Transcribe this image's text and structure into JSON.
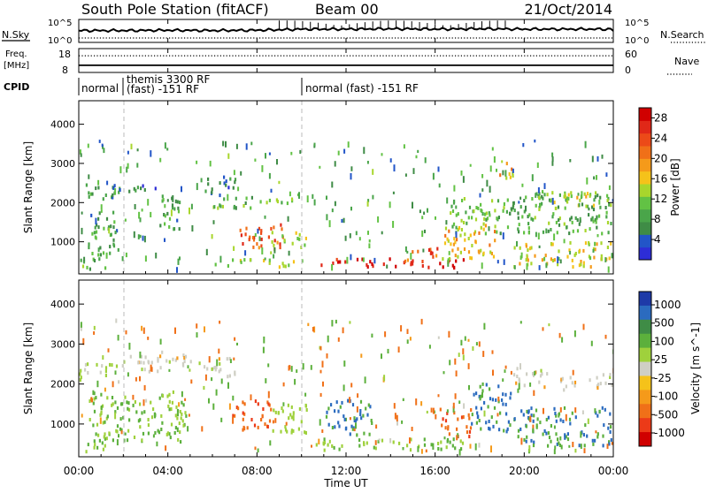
{
  "header": {
    "station": "South Pole Station (fitACF)",
    "beam": "Beam 00",
    "date": "21/Oct/2014"
  },
  "colors": {
    "noise_line": "#000000",
    "grid_dash": "#bbbbbb",
    "power_scale": [
      "#2d2dd6",
      "#2255c8",
      "#3f8c46",
      "#4aa54a",
      "#62c244",
      "#a8d62c",
      "#f5c21a",
      "#f59a1a",
      "#f07018",
      "#ec4a18",
      "#e02818",
      "#d00000"
    ],
    "velocity_scale": [
      "#1e3aa8",
      "#2b6bbf",
      "#3f8c46",
      "#5cb03c",
      "#9fd13c",
      "#cfcfc4",
      "#f5c21a",
      "#f59a1a",
      "#f07018",
      "#ec3a18",
      "#d00000"
    ]
  },
  "chart_data": [
    {
      "type": "line",
      "title": "N.Sky / N.Search",
      "left_label": "N.Sky",
      "right_label": "N.Search",
      "left_ticks": [
        "10^5",
        "10^0"
      ],
      "right_ticks": [
        "10^5",
        "10^0"
      ],
      "x_range": [
        "00:00",
        "24:00"
      ],
      "y_scale": "log",
      "series": [
        {
          "name": "N.Sky",
          "style": "solid",
          "x_hours": [
            0,
            2,
            4,
            6,
            8,
            9.5,
            10,
            12,
            14,
            16,
            18,
            20,
            22,
            24
          ],
          "log10_values": [
            2.6,
            2.6,
            2.7,
            2.6,
            2.7,
            2.9,
            3.0,
            3.0,
            3.1,
            3.0,
            3.1,
            3.0,
            3.0,
            3.0
          ]
        },
        {
          "name": "N.Search",
          "style": "dotted",
          "x_hours": [
            0,
            4,
            8,
            12,
            16,
            20,
            24
          ],
          "log10_values": [
            0.5,
            0.5,
            0.5,
            0.5,
            0.5,
            0.5,
            0.5
          ]
        }
      ]
    },
    {
      "type": "line",
      "title": "Freq / Nave",
      "left_label": "Freq. [MHz]",
      "right_label": "Nave",
      "left_ticks": [
        "18",
        "8"
      ],
      "right_ticks": [
        "60",
        "0"
      ],
      "x_range": [
        "00:00",
        "24:00"
      ],
      "series": [
        {
          "name": "Freq",
          "style": "solid",
          "x_hours": [
            0,
            2,
            24
          ],
          "values": [
            10.8,
            10.8,
            10.8
          ]
        },
        {
          "name": "Nave",
          "style": "dotted",
          "x_hours": [
            0,
            24
          ],
          "values": [
            46,
            46
          ]
        }
      ]
    },
    {
      "type": "table",
      "title": "CPID",
      "label": "CPID",
      "segments": [
        {
          "start_hours": 0,
          "end_hours": 2,
          "text": "normal"
        },
        {
          "start_hours": 2,
          "end_hours": 10,
          "text": "themis 3300 RF",
          "text2": "(fast) -151 RF"
        },
        {
          "start_hours": 10,
          "end_hours": 24,
          "text": "normal (fast) -151 RF"
        }
      ]
    },
    {
      "type": "heatmap",
      "quantity": "power",
      "ylabel": "Slant Range [km]",
      "yticks": [
        1000,
        2000,
        3000,
        4000
      ],
      "ylim": [
        180,
        4600
      ],
      "colorbar_label": "Power [dB]",
      "colorbar_ticks": [
        4,
        8,
        12,
        16,
        20,
        24,
        28
      ],
      "colorbar_range": [
        0,
        30
      ],
      "echo_regions": [
        {
          "h0": 0.0,
          "h1": 1.8,
          "r0": 2050,
          "r1": 2500,
          "level": 7
        },
        {
          "h0": 1.8,
          "h1": 3.5,
          "r0": 2250,
          "r1": 2500,
          "level": 6
        },
        {
          "h0": 0.4,
          "h1": 1.8,
          "r0": 550,
          "r1": 1750,
          "level": 8
        },
        {
          "h0": 3.4,
          "h1": 4.5,
          "r0": 1300,
          "r1": 2200,
          "level": 8
        },
        {
          "h0": 5.6,
          "h1": 7.0,
          "r0": 2150,
          "r1": 2700,
          "level": 6
        },
        {
          "h0": 6.0,
          "h1": 9.6,
          "r0": 1850,
          "r1": 2150,
          "level": 11
        },
        {
          "h0": 7.2,
          "h1": 9.2,
          "r0": 800,
          "r1": 1450,
          "level": 23
        },
        {
          "h0": 8.6,
          "h1": 10.2,
          "r0": 850,
          "r1": 1250,
          "level": 14
        },
        {
          "h0": 6.0,
          "h1": 10.0,
          "r0": 350,
          "r1": 560,
          "level": 13
        },
        {
          "h0": 10.8,
          "h1": 17.3,
          "r0": 330,
          "r1": 560,
          "level": 27
        },
        {
          "h0": 14.6,
          "h1": 16.2,
          "r0": 500,
          "r1": 880,
          "level": 22
        },
        {
          "h0": 16.3,
          "h1": 18.8,
          "r0": 550,
          "r1": 1450,
          "level": 17
        },
        {
          "h0": 16.6,
          "h1": 19.3,
          "r0": 1200,
          "r1": 2100,
          "level": 11
        },
        {
          "h0": 18.8,
          "h1": 19.5,
          "r0": 2500,
          "r1": 3050,
          "level": 18
        },
        {
          "h0": 19.3,
          "h1": 24.0,
          "r0": 1200,
          "r1": 2200,
          "level": 9
        },
        {
          "h0": 20.4,
          "h1": 22.4,
          "r0": 1850,
          "r1": 2300,
          "level": 13
        },
        {
          "h0": 22.3,
          "h1": 24.0,
          "r0": 1900,
          "r1": 2250,
          "level": 15
        },
        {
          "h0": 19.5,
          "h1": 24.0,
          "r0": 350,
          "r1": 1000,
          "level": 16
        },
        {
          "h0": 0.0,
          "h1": 1.4,
          "r0": 300,
          "r1": 560,
          "level": 9
        }
      ]
    },
    {
      "type": "heatmap",
      "quantity": "velocity",
      "ylabel": "Slant Range [km]",
      "yticks": [
        1000,
        2000,
        3000,
        4000
      ],
      "ylim": [
        180,
        4600
      ],
      "colorbar_label": "Velocity [m s^-1]",
      "colorbar_ticks": [
        "1000",
        "500",
        "100",
        "25",
        "-25",
        "-100",
        "-500",
        "-1000"
      ],
      "echo_regions": [
        {
          "h0": 0.0,
          "h1": 1.8,
          "r0": 2050,
          "r1": 2500,
          "level": 25
        },
        {
          "h0": 1.8,
          "h1": 3.5,
          "r0": 2250,
          "r1": 2700,
          "level": 0
        },
        {
          "h0": 3.5,
          "h1": 5.5,
          "r0": 2400,
          "r1": 2800,
          "level": 0
        },
        {
          "h0": 5.6,
          "h1": 7.0,
          "r0": 2150,
          "r1": 2700,
          "level": 0
        },
        {
          "h0": 0.4,
          "h1": 4.8,
          "r0": 550,
          "r1": 1800,
          "level": 110
        },
        {
          "h0": 6.8,
          "h1": 8.6,
          "r0": 850,
          "r1": 1600,
          "level": -450
        },
        {
          "h0": 8.6,
          "h1": 10.2,
          "r0": 700,
          "r1": 1500,
          "level": 60
        },
        {
          "h0": 10.6,
          "h1": 17.4,
          "r0": 330,
          "r1": 620,
          "level": 95
        },
        {
          "h0": 11.0,
          "h1": 13.2,
          "r0": 700,
          "r1": 1600,
          "level": 600
        },
        {
          "h0": 16.2,
          "h1": 17.6,
          "r0": 650,
          "r1": 1400,
          "level": -420
        },
        {
          "h0": 17.6,
          "h1": 19.5,
          "r0": 800,
          "r1": 2000,
          "level": 650
        },
        {
          "h0": 19.4,
          "h1": 21.0,
          "r0": 1900,
          "r1": 2400,
          "level": 0
        },
        {
          "h0": 21.6,
          "h1": 24.0,
          "r0": 1850,
          "r1": 2250,
          "level": 0
        },
        {
          "h0": 19.5,
          "h1": 24.0,
          "r0": 450,
          "r1": 1400,
          "level": 500
        },
        {
          "h0": 0.0,
          "h1": 1.4,
          "r0": 300,
          "r1": 560,
          "level": 100
        }
      ]
    }
  ],
  "xaxis": {
    "ticks": [
      "00:00",
      "04:00",
      "08:00",
      "12:00",
      "16:00",
      "20:00",
      "00:00"
    ],
    "label": "Time UT"
  }
}
